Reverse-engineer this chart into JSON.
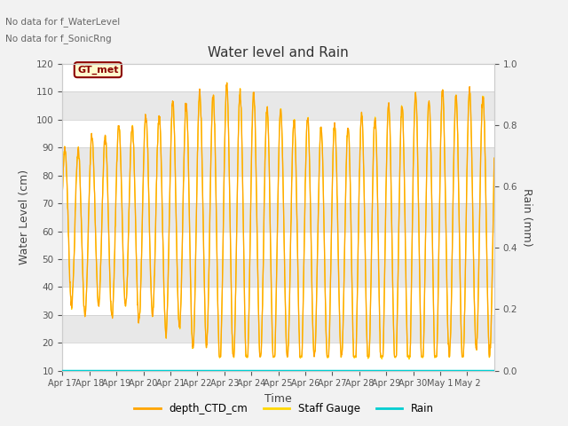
{
  "title": "Water level and Rain",
  "xlabel": "Time",
  "ylabel_left": "Water Level (cm)",
  "ylabel_right": "Rain (mm)",
  "text_no_data_1": "No data for f_WaterLevel",
  "text_no_data_2": "No data for f_SonicRng",
  "legend_box_label": "GT_met",
  "ylim_left": [
    10,
    120
  ],
  "ylim_right": [
    0.0,
    1.0
  ],
  "yticks_left": [
    10,
    20,
    30,
    40,
    50,
    60,
    70,
    80,
    90,
    100,
    110,
    120
  ],
  "yticks_right": [
    0.0,
    0.2,
    0.4,
    0.6,
    0.8,
    1.0
  ],
  "bg_color": "#f2f2f2",
  "plot_bg_color": "#e8e8e8",
  "line_color_ctd": "#FFA500",
  "line_color_staff": "#FFD700",
  "line_color_rain": "#00CED1",
  "legend_labels": [
    "depth_CTD_cm",
    "Staff Gauge",
    "Rain"
  ],
  "x_tick_labels": [
    "Apr 17",
    "Apr 18",
    "Apr 19",
    "Apr 20",
    "Apr 21",
    "Apr 22",
    "Apr 23",
    "Apr 24",
    "Apr 25",
    "Apr 26",
    "Apr 27",
    "Apr 28",
    "Apr 29",
    "Apr 30",
    "May 1",
    "May 2"
  ],
  "n_days": 16,
  "white_bands": [
    10,
    30,
    50,
    70,
    90,
    110
  ],
  "gray_bands": [
    20,
    40,
    60,
    80,
    100
  ]
}
